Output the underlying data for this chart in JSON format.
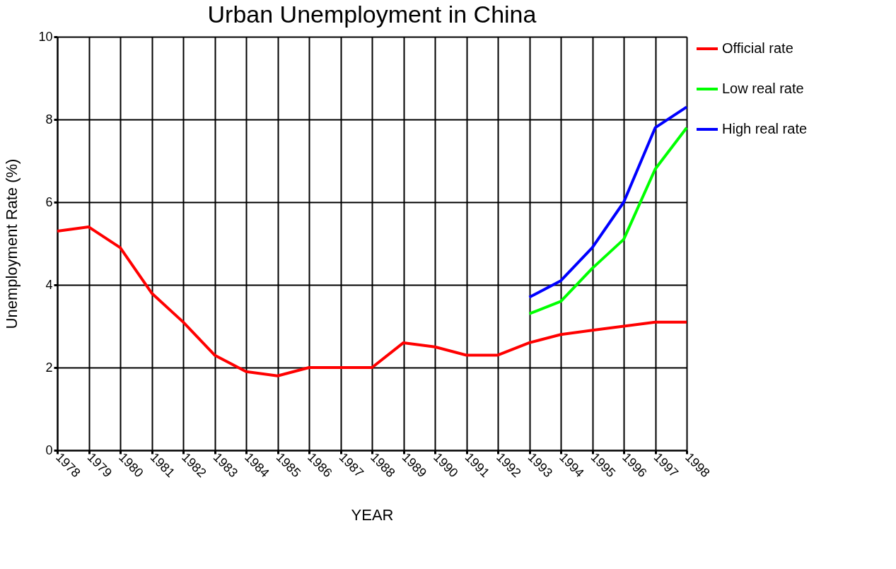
{
  "chart_data": {
    "type": "line",
    "title": "Urban Unemployment in China",
    "xlabel": "YEAR",
    "ylabel": "Unemployment Rate (%)",
    "x": [
      1978,
      1979,
      1980,
      1981,
      1982,
      1983,
      1984,
      1985,
      1986,
      1987,
      1988,
      1989,
      1990,
      1991,
      1992,
      1993,
      1994,
      1995,
      1996,
      1997,
      1998
    ],
    "series": [
      {
        "name": "Official rate",
        "color": "#ff0000",
        "values": [
          5.3,
          5.4,
          4.9,
          3.8,
          3.1,
          2.3,
          1.9,
          1.8,
          2.0,
          2.0,
          2.0,
          2.6,
          2.5,
          2.3,
          2.3,
          2.6,
          2.8,
          2.9,
          3.0,
          3.1,
          3.1
        ]
      },
      {
        "name": "Low real rate",
        "color": "#00ff00",
        "values": [
          null,
          null,
          null,
          null,
          null,
          null,
          null,
          null,
          null,
          null,
          null,
          null,
          null,
          null,
          null,
          3.3,
          3.6,
          4.4,
          5.1,
          6.8,
          7.8
        ]
      },
      {
        "name": "High real rate",
        "color": "#0000ff",
        "values": [
          null,
          null,
          null,
          null,
          null,
          null,
          null,
          null,
          null,
          null,
          null,
          null,
          null,
          null,
          null,
          3.7,
          4.1,
          4.9,
          6.0,
          7.8,
          8.3
        ]
      }
    ],
    "xlim": [
      1978,
      1998
    ],
    "xticks": [
      1978,
      1979,
      1980,
      1981,
      1982,
      1983,
      1984,
      1985,
      1986,
      1987,
      1988,
      1989,
      1990,
      1991,
      1992,
      1993,
      1994,
      1995,
      1996,
      1997,
      1998
    ],
    "ylim": [
      0,
      10
    ],
    "yticks": [
      0,
      2,
      4,
      6,
      8,
      10
    ],
    "grid": true,
    "legend": "right",
    "marker": "none",
    "line_style": "solid"
  }
}
